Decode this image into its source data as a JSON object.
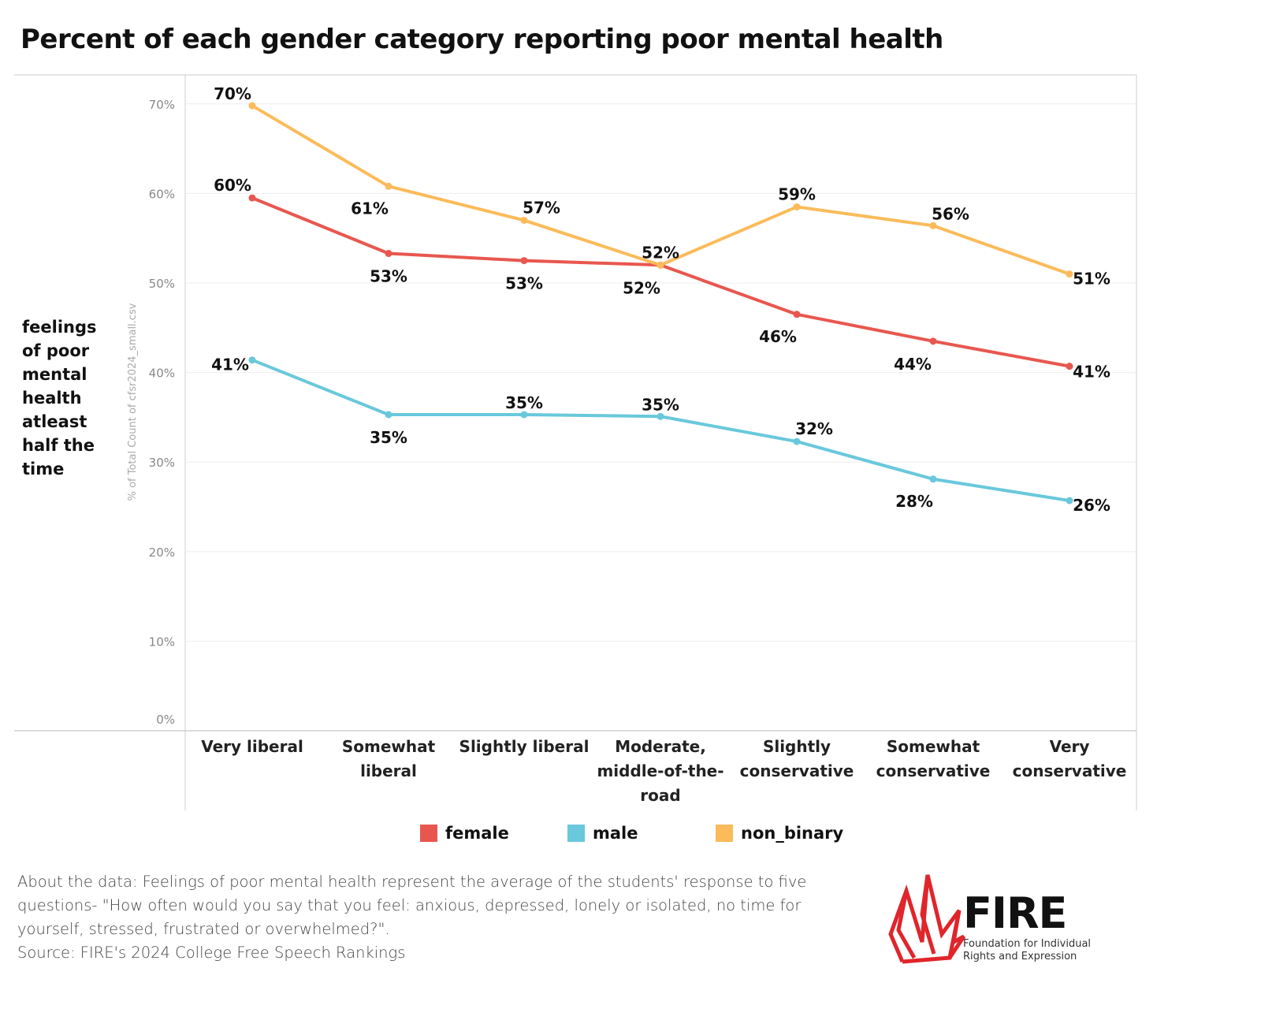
{
  "title": "Percent of each gender category reporting poor mental health",
  "y_title": "feelings of poor mental health atleast half the time",
  "chart_data": {
    "type": "line",
    "title": "Percent of each gender category reporting poor mental health",
    "ylabel": "% of Total Count of cfsr2024_small.csv",
    "ylim": [
      0,
      72
    ],
    "yticks": [
      "0%",
      "10%",
      "20%",
      "30%",
      "40%",
      "50%",
      "60%",
      "70%"
    ],
    "ytick_values": [
      0,
      10,
      20,
      30,
      40,
      50,
      60,
      70
    ],
    "grid": true,
    "legend_position": "bottom",
    "categories": [
      "Very liberal",
      "Somewhat liberal",
      "Slightly liberal",
      "Moderate, middle-of-the-road",
      "Slightly conservative",
      "Somewhat conservative",
      "Very conservative"
    ],
    "series": [
      {
        "name": "female",
        "color": "#e8574f",
        "values": [
          59.5,
          53.3,
          52.5,
          52.0,
          46.5,
          43.5,
          40.7
        ],
        "labels": [
          "60%",
          "53%",
          "53%",
          "52%",
          "46%",
          "44%",
          "41%"
        ]
      },
      {
        "name": "male",
        "color": "#69c8dc",
        "values": [
          41.4,
          35.3,
          35.3,
          35.1,
          32.3,
          28.1,
          25.7
        ],
        "labels": [
          "41%",
          "35%",
          "35%",
          "35%",
          "32%",
          "28%",
          "26%"
        ]
      },
      {
        "name": "non_binary",
        "color": "#fbbb5a",
        "values": [
          69.8,
          60.8,
          57.0,
          52.0,
          58.5,
          56.4,
          51.0
        ],
        "labels": [
          "70%",
          "61%",
          "57%",
          "52%",
          "59%",
          "56%",
          "51%"
        ]
      }
    ]
  },
  "about": "About the data: Feelings of poor mental health represent the average of the students' response to five questions- \"How often would you say that you feel: anxious, depressed, lonely or isolated, no time for yourself, stressed, frustrated or overwhelmed?\".",
  "source": "Source: FIRE's 2024 College Free Speech Rankings",
  "logo": {
    "name": "FIRE",
    "subtitle": "Foundation for Individual Rights and Expression",
    "color": "#e0252b"
  }
}
